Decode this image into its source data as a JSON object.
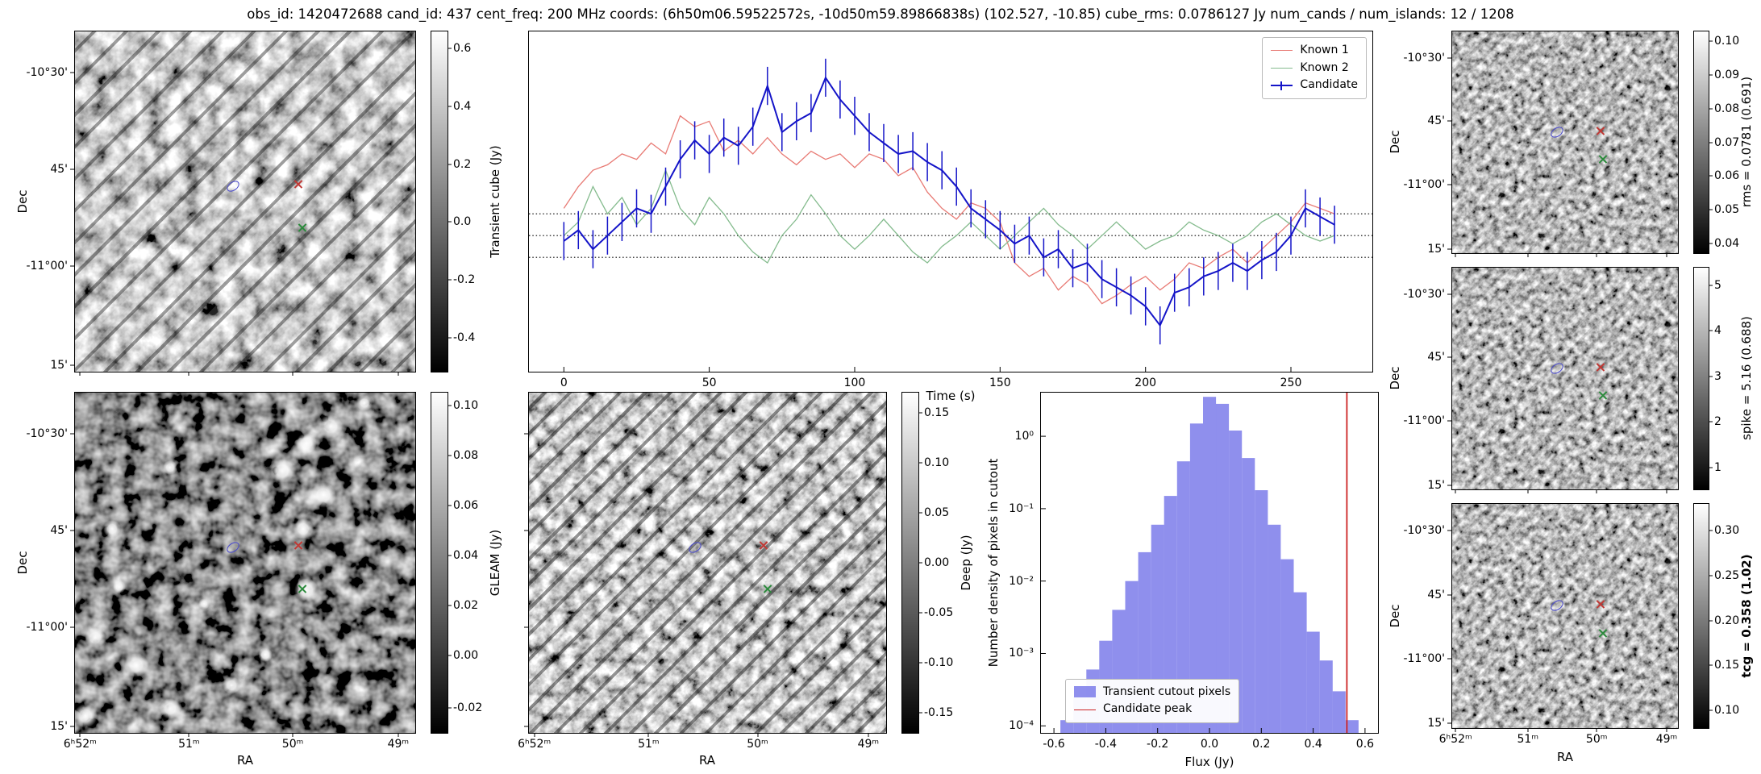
{
  "figure": {
    "title": "obs_id: 1420472688 cand_id: 437 cent_freq: 200 MHz coords: (6h50m06.59522572s, -10d50m59.89866838s) (102.527, -10.85) cube_rms: 0.0786127 Jy num_cands / num_islands: 12 / 1208"
  },
  "axes": {
    "dec_label": "Dec",
    "ra_label": "RA",
    "dec_ticks": [
      "-10°30'",
      "45'",
      "-11°00'",
      "15'"
    ],
    "ra_ticks": [
      "6ʰ52ᵐ",
      "51ᵐ",
      "50ᵐ",
      "49ᵐ"
    ]
  },
  "panels": {
    "transient": {
      "colorbar_label": "Transient cube (Jy)",
      "colorbar_ticks": [
        "0.6",
        "0.4",
        "0.2",
        "0.0",
        "-0.2",
        "-0.4"
      ]
    },
    "gleam": {
      "colorbar_label": "GLEAM (Jy)",
      "colorbar_ticks": [
        "0.10",
        "0.08",
        "0.06",
        "0.04",
        "0.02",
        "0.00",
        "-0.02"
      ]
    },
    "deep": {
      "colorbar_label": "Deep (Jy)",
      "colorbar_ticks": [
        "0.15",
        "0.10",
        "0.05",
        "0.00",
        "-0.05",
        "-0.10",
        "-0.15"
      ]
    },
    "rms": {
      "colorbar_label": "rms = 0.0781 (0.691)",
      "colorbar_ticks": [
        "0.10",
        "0.09",
        "0.08",
        "0.07",
        "0.06",
        "0.05",
        "0.04"
      ]
    },
    "spike": {
      "colorbar_label": "spike = 5.16 (0.688)",
      "colorbar_ticks": [
        "5",
        "4",
        "3",
        "2",
        "1"
      ]
    },
    "tcg": {
      "colorbar_label": "tcg = 0.358 (1.02)",
      "colorbar_ticks": [
        "0.30",
        "0.25",
        "0.20",
        "0.15",
        "0.10"
      ]
    }
  },
  "chart_data": [
    {
      "type": "line",
      "title": "",
      "xlabel": "Time (s)",
      "ylabel": "",
      "xlim": [
        -12,
        278
      ],
      "ylim": [
        -0.5,
        0.75
      ],
      "xticks": [
        0,
        50,
        100,
        150,
        200,
        250
      ],
      "hlines": [
        0.08,
        0.0,
        -0.08
      ],
      "legend_position": "upper right",
      "x": [
        0,
        5,
        10,
        15,
        20,
        25,
        30,
        35,
        40,
        45,
        50,
        55,
        60,
        65,
        70,
        75,
        80,
        85,
        90,
        95,
        100,
        105,
        110,
        115,
        120,
        125,
        130,
        135,
        140,
        145,
        150,
        155,
        160,
        165,
        170,
        175,
        180,
        185,
        190,
        195,
        200,
        205,
        210,
        215,
        220,
        225,
        230,
        235,
        240,
        245,
        250,
        255,
        260,
        265
      ],
      "series": [
        {
          "name": "Known 1",
          "color": "#e87a74",
          "values": [
            0.1,
            0.18,
            0.24,
            0.26,
            0.3,
            0.28,
            0.34,
            0.3,
            0.44,
            0.4,
            0.42,
            0.31,
            0.35,
            0.3,
            0.36,
            0.3,
            0.26,
            0.31,
            0.28,
            0.3,
            0.25,
            0.3,
            0.28,
            0.22,
            0.25,
            0.16,
            0.1,
            0.06,
            0.12,
            0.1,
            0.05,
            -0.1,
            -0.15,
            -0.12,
            -0.2,
            -0.15,
            -0.18,
            -0.25,
            -0.22,
            -0.18,
            -0.15,
            -0.2,
            -0.16,
            -0.1,
            -0.12,
            -0.08,
            -0.05,
            -0.1,
            -0.05,
            0.0,
            0.05,
            0.12,
            0.1,
            0.08
          ]
        },
        {
          "name": "Known 2",
          "color": "#84bb8d",
          "values": [
            0.0,
            0.05,
            0.18,
            0.08,
            0.14,
            0.04,
            0.1,
            0.24,
            0.1,
            0.04,
            0.14,
            0.08,
            0.0,
            -0.06,
            -0.1,
            0.0,
            0.06,
            0.15,
            0.08,
            0.0,
            -0.05,
            0.0,
            0.06,
            0.0,
            -0.06,
            -0.1,
            -0.04,
            0.0,
            0.05,
            0.0,
            -0.05,
            0.0,
            0.05,
            0.1,
            0.04,
            0.0,
            -0.05,
            0.0,
            0.05,
            0.0,
            -0.05,
            -0.02,
            0.0,
            0.05,
            0.02,
            0.0,
            -0.03,
            0.0,
            0.05,
            0.08,
            0.04,
            0.0,
            -0.02,
            0.0
          ]
        },
        {
          "name": "Candidate",
          "color": "#1414c8",
          "errorbar": 0.07,
          "values": [
            -0.02,
            0.02,
            -0.05,
            0.0,
            0.05,
            0.1,
            0.08,
            0.18,
            0.28,
            0.35,
            0.3,
            0.36,
            0.33,
            0.4,
            0.55,
            0.38,
            0.42,
            0.45,
            0.58,
            0.5,
            0.44,
            0.38,
            0.34,
            0.3,
            0.31,
            0.27,
            0.24,
            0.18,
            0.1,
            0.06,
            0.02,
            -0.03,
            0.0,
            -0.08,
            -0.05,
            -0.12,
            -0.1,
            -0.16,
            -0.19,
            -0.22,
            -0.26,
            -0.33,
            -0.21,
            -0.19,
            -0.15,
            -0.13,
            -0.1,
            -0.13,
            -0.09,
            -0.06,
            0.0,
            0.1,
            0.07,
            0.04
          ]
        }
      ]
    },
    {
      "type": "bar",
      "title": "",
      "xlabel": "Flux (Jy)",
      "ylabel": "Number density of pixels in cutout",
      "yscale": "log",
      "xlim": [
        -0.65,
        0.65
      ],
      "ylim": [
        8e-05,
        4
      ],
      "xticks": [
        -0.6,
        -0.4,
        -0.2,
        0,
        0.2,
        0.4,
        0.6
      ],
      "xtick_labels": [
        "-0.6",
        "-0.4",
        "-0.2",
        "0.0",
        "0.2",
        "0.4",
        "0.6"
      ],
      "ytick_values": [
        1,
        0.1,
        0.01,
        0.001,
        0.0001
      ],
      "ytick_labels": [
        "10⁰",
        "10⁻¹",
        "10⁻²",
        "10⁻³",
        "10⁻⁴"
      ],
      "bar_color": "#7b7bea",
      "bin_width": 0.05,
      "bin_centers": [
        -0.55,
        -0.5,
        -0.45,
        -0.4,
        -0.35,
        -0.3,
        -0.25,
        -0.2,
        -0.15,
        -0.1,
        -0.05,
        0,
        0.05,
        0.1,
        0.15,
        0.2,
        0.25,
        0.3,
        0.35,
        0.4,
        0.45,
        0.5,
        0.55
      ],
      "values": [
        0.00012,
        0.00025,
        0.0006,
        0.0015,
        0.004,
        0.01,
        0.025,
        0.06,
        0.15,
        0.45,
        1.5,
        3.5,
        2.8,
        1.2,
        0.5,
        0.18,
        0.06,
        0.02,
        0.007,
        0.002,
        0.0008,
        0.0003,
        0.00012
      ],
      "vline": {
        "x": 0.53,
        "color": "#cc2222"
      },
      "legend": [
        "Transient cutout pixels",
        "Candidate peak"
      ]
    }
  ]
}
